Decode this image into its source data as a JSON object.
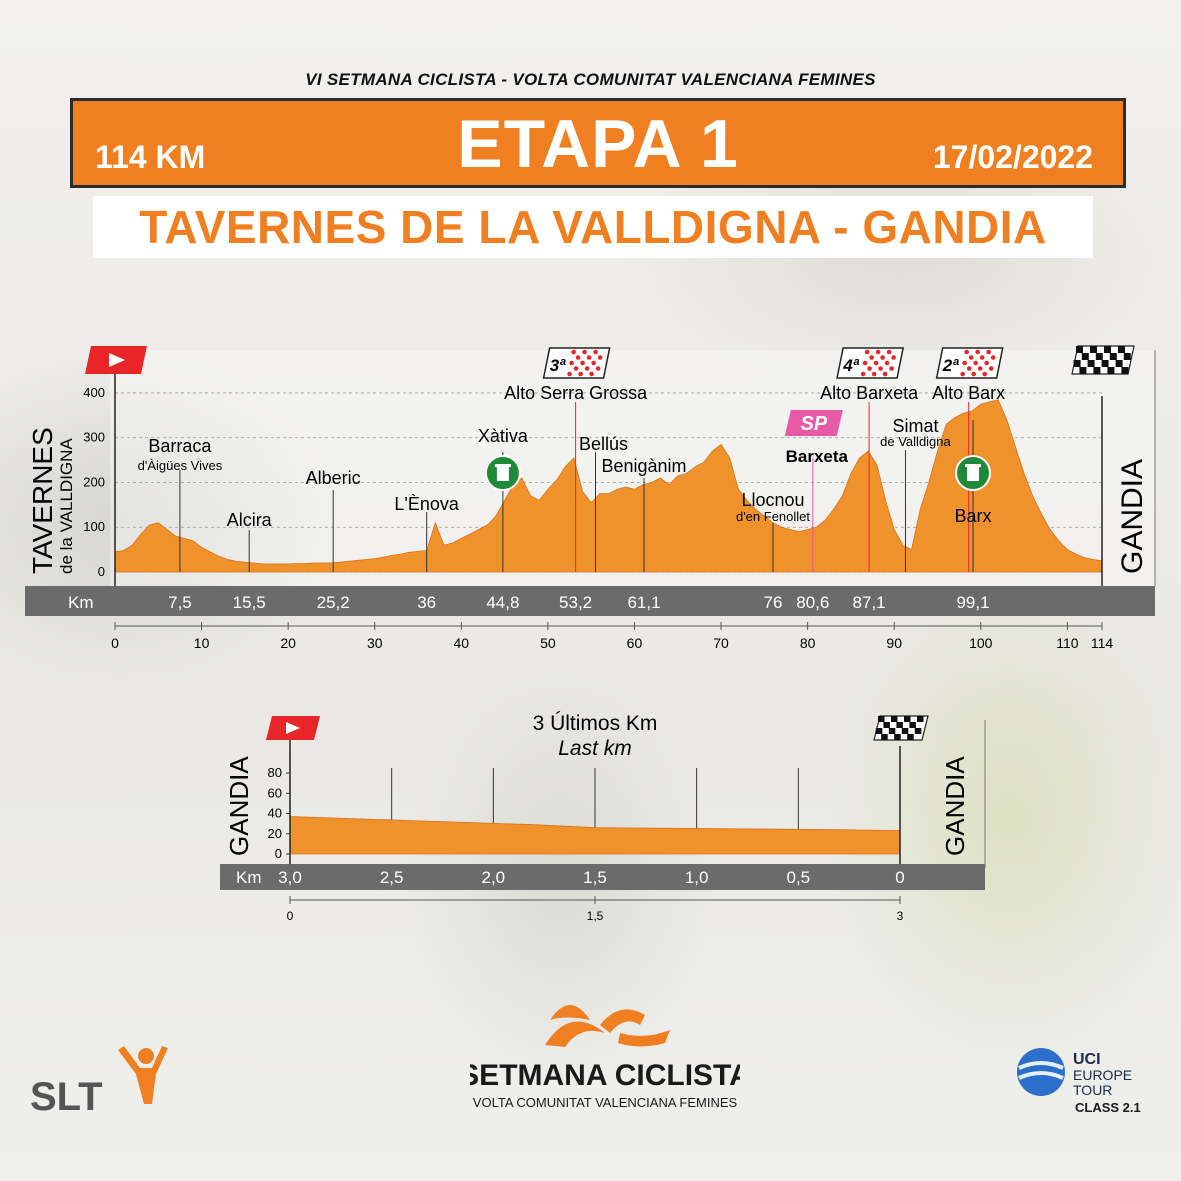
{
  "header": {
    "subtitle": "VI SETMANA CICLISTA - VOLTA COMUNITAT VALENCIANA FEMINES",
    "distance": "114 KM",
    "stage": "ETAPA 1",
    "date": "17/02/2022",
    "route": "TAVERNES DE LA VALLDIGNA - GANDIA"
  },
  "colors": {
    "accent": "#f07f22",
    "profile_fill": "#f0922c",
    "km_band": "#6b6b6b",
    "kom": "#e8262a",
    "sprint": "#e65aa6",
    "feed": "#1f8a3a"
  },
  "chart_data": [
    {
      "type": "area",
      "start_label": {
        "line1": "TAVERNES",
        "line2": "de la VALLDIGNA"
      },
      "finish_label": "GANDIA",
      "yticks": [
        0,
        100,
        200,
        300,
        400
      ],
      "ylim": [
        0,
        420
      ],
      "xlim": [
        0,
        114
      ],
      "xticks": [
        0,
        10,
        20,
        30,
        40,
        50,
        60,
        70,
        80,
        90,
        100,
        110,
        114
      ],
      "km_band_label": "Km",
      "profile": {
        "x": [
          0,
          1,
          2,
          3,
          4,
          5,
          6,
          7,
          8,
          9,
          10,
          11,
          12,
          13,
          14,
          15,
          16,
          17,
          18,
          19,
          20,
          21,
          22,
          23,
          24,
          25,
          26,
          27,
          28,
          29,
          30,
          31,
          32,
          33,
          34,
          35,
          36,
          37,
          38,
          39,
          40,
          41,
          42,
          43,
          44,
          45,
          46,
          47,
          48,
          49,
          50,
          51,
          52,
          53,
          54,
          55,
          56,
          57,
          58,
          59,
          60,
          61,
          62,
          63,
          64,
          65,
          66,
          67,
          68,
          69,
          70,
          71,
          72,
          73,
          74,
          75,
          76,
          77,
          78,
          79,
          80,
          81,
          82,
          83,
          84,
          85,
          86,
          87,
          88,
          89,
          90,
          91,
          92,
          93,
          94,
          95,
          96,
          97,
          98,
          99,
          100,
          101,
          102,
          103,
          104,
          105,
          106,
          107,
          108,
          109,
          110,
          111,
          112,
          113,
          114
        ],
        "elevation": [
          45,
          48,
          60,
          85,
          105,
          110,
          95,
          80,
          75,
          70,
          55,
          45,
          35,
          28,
          24,
          22,
          20,
          18,
          18,
          18,
          18,
          19,
          19,
          20,
          20,
          20,
          22,
          24,
          26,
          28,
          30,
          33,
          37,
          40,
          44,
          46,
          48,
          110,
          60,
          65,
          75,
          85,
          95,
          105,
          125,
          160,
          195,
          210,
          170,
          160,
          185,
          205,
          235,
          255,
          180,
          155,
          175,
          175,
          185,
          190,
          185,
          195,
          200,
          210,
          195,
          215,
          220,
          235,
          245,
          270,
          285,
          255,
          185,
          160,
          140,
          125,
          110,
          100,
          95,
          90,
          95,
          100,
          115,
          140,
          170,
          220,
          255,
          270,
          240,
          160,
          95,
          60,
          50,
          140,
          200,
          270,
          330,
          345,
          355,
          360,
          375,
          380,
          385,
          340,
          280,
          220,
          170,
          130,
          95,
          70,
          50,
          40,
          32,
          28,
          25
        ]
      },
      "markers": [
        {
          "km": 7.5,
          "name": "Barraca",
          "sub": "d'Àigües Vives"
        },
        {
          "km": 15.5,
          "name": "Alcira",
          "sub": ""
        },
        {
          "km": 25.2,
          "name": "Alberic",
          "sub": ""
        },
        {
          "km": 36,
          "name": "L'Ènova",
          "sub": ""
        },
        {
          "km": 44.8,
          "name": "Xàtiva",
          "sub": ""
        },
        {
          "km": 53.2,
          "name": "Alto Serra Grossa",
          "sub": ""
        },
        {
          "km": 55.5,
          "name": "Bellús",
          "sub": ""
        },
        {
          "km": 61.1,
          "name": "Benigànim",
          "sub": ""
        },
        {
          "km": 76,
          "name": "Llocnou",
          "sub": "d'en Fenollet"
        },
        {
          "km": 80.6,
          "name": "Barxeta",
          "sub": ""
        },
        {
          "km": 87.1,
          "name": "Alto Barxeta",
          "sub": ""
        },
        {
          "km": 91.3,
          "name": "Simat",
          "sub": "de Valldigna"
        },
        {
          "km": 99.1,
          "name": "Barx",
          "sub": ""
        },
        {
          "km": 98.6,
          "name": "Alto Barx",
          "sub": ""
        }
      ],
      "km_band_values": [
        "7,5",
        "15,5",
        "25,2",
        "36",
        "44,8",
        "53,2",
        "61,1",
        "76",
        "80,6",
        "87,1",
        "99,1"
      ],
      "kom": [
        {
          "km": 53.2,
          "cat": "3ª",
          "name": "Alto Serra Grossa"
        },
        {
          "km": 87.1,
          "cat": "4ª",
          "name": "Alto Barxeta"
        },
        {
          "km": 98.6,
          "cat": "2ª",
          "name": "Alto Barx"
        }
      ],
      "sprint": {
        "km": 80.6,
        "label": "SP",
        "name": "Barxeta"
      },
      "feed_zones": [
        44.8,
        99.1
      ]
    },
    {
      "type": "area",
      "title": "3 Últimos Km",
      "subtitle": "Last km",
      "start_label": "GANDIA",
      "finish_label": "GANDIA",
      "yticks": [
        0,
        20,
        40,
        60,
        80
      ],
      "ylim": [
        0,
        85
      ],
      "xlim": [
        0,
        3
      ],
      "km_band_label": "Km",
      "km_band_values": [
        "3,0",
        "2,5",
        "2,0",
        "1,5",
        "1,0",
        "0,5",
        "0"
      ],
      "xticks": [
        "0",
        "1,5",
        "3"
      ],
      "profile": {
        "x": [
          0,
          0.3,
          0.6,
          0.9,
          1.2,
          1.5,
          1.8,
          2.1,
          2.4,
          2.7,
          3.0
        ],
        "elevation": [
          37,
          35,
          33,
          31,
          29,
          26,
          25.5,
          25,
          24.5,
          24,
          23
        ]
      }
    }
  ],
  "logos": {
    "event_name": "SETMANA CICLISTA",
    "event_sub": "VOLTA COMUNITAT VALENCIANA FEMINES",
    "slt": "SLT",
    "uci_line1": "UCI",
    "uci_line2": "EUROPE",
    "uci_line3": "TOUR",
    "uci_class": "CLASS 2.1"
  }
}
